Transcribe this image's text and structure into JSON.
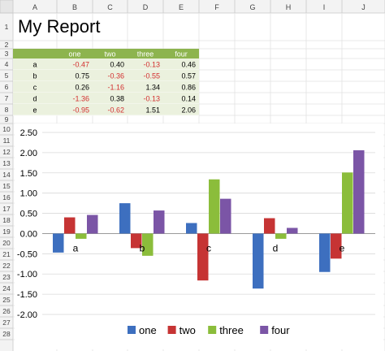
{
  "sheet": {
    "columns": [
      "A",
      "B",
      "C",
      "D",
      "E",
      "F",
      "G",
      "H",
      "I",
      "J"
    ],
    "rows": [
      "1",
      "2",
      "3",
      "4",
      "5",
      "6",
      "7",
      "8",
      "9",
      "10",
      "11",
      "12",
      "13",
      "14",
      "15",
      "16",
      "17",
      "18",
      "19",
      "20",
      "21",
      "22",
      "23",
      "24",
      "25",
      "26",
      "27",
      "28"
    ],
    "title": "My Report",
    "table": {
      "headers": [
        "one",
        "two",
        "three",
        "four"
      ],
      "rows": [
        {
          "label": "a",
          "values": [
            "-0.47",
            "0.40",
            "-0.13",
            "0.46"
          ]
        },
        {
          "label": "b",
          "values": [
            "0.75",
            "-0.36",
            "-0.55",
            "0.57"
          ]
        },
        {
          "label": "c",
          "values": [
            "0.26",
            "-1.16",
            "1.34",
            "0.86"
          ]
        },
        {
          "label": "d",
          "values": [
            "-1.36",
            "0.38",
            "-0.13",
            "0.14"
          ]
        },
        {
          "label": "e",
          "values": [
            "-0.95",
            "-0.62",
            "1.51",
            "2.06"
          ]
        }
      ],
      "header_color": "#8db44e",
      "body_color": "#ebf1de",
      "negative_color": "#d32f2f"
    }
  },
  "chart_data": {
    "type": "bar",
    "categories": [
      "a",
      "b",
      "c",
      "d",
      "e"
    ],
    "series": [
      {
        "name": "one",
        "color": "#3d6fbf",
        "values": [
          -0.47,
          0.75,
          0.26,
          -1.36,
          -0.95
        ]
      },
      {
        "name": "two",
        "color": "#c63434",
        "values": [
          0.4,
          -0.36,
          -1.16,
          0.38,
          -0.62
        ]
      },
      {
        "name": "three",
        "color": "#8bbd3b",
        "values": [
          -0.13,
          -0.55,
          1.34,
          -0.13,
          1.51
        ]
      },
      {
        "name": "four",
        "color": "#7b55a6",
        "values": [
          0.46,
          0.57,
          0.86,
          0.14,
          2.06
        ]
      }
    ],
    "yticks": [
      "2.50",
      "2.00",
      "1.50",
      "1.00",
      "0.50",
      "0.00",
      "-0.50",
      "-1.00",
      "-1.50",
      "-2.00"
    ],
    "ylim": [
      -2.0,
      2.5
    ],
    "grid": true,
    "legend_position": "bottom"
  }
}
